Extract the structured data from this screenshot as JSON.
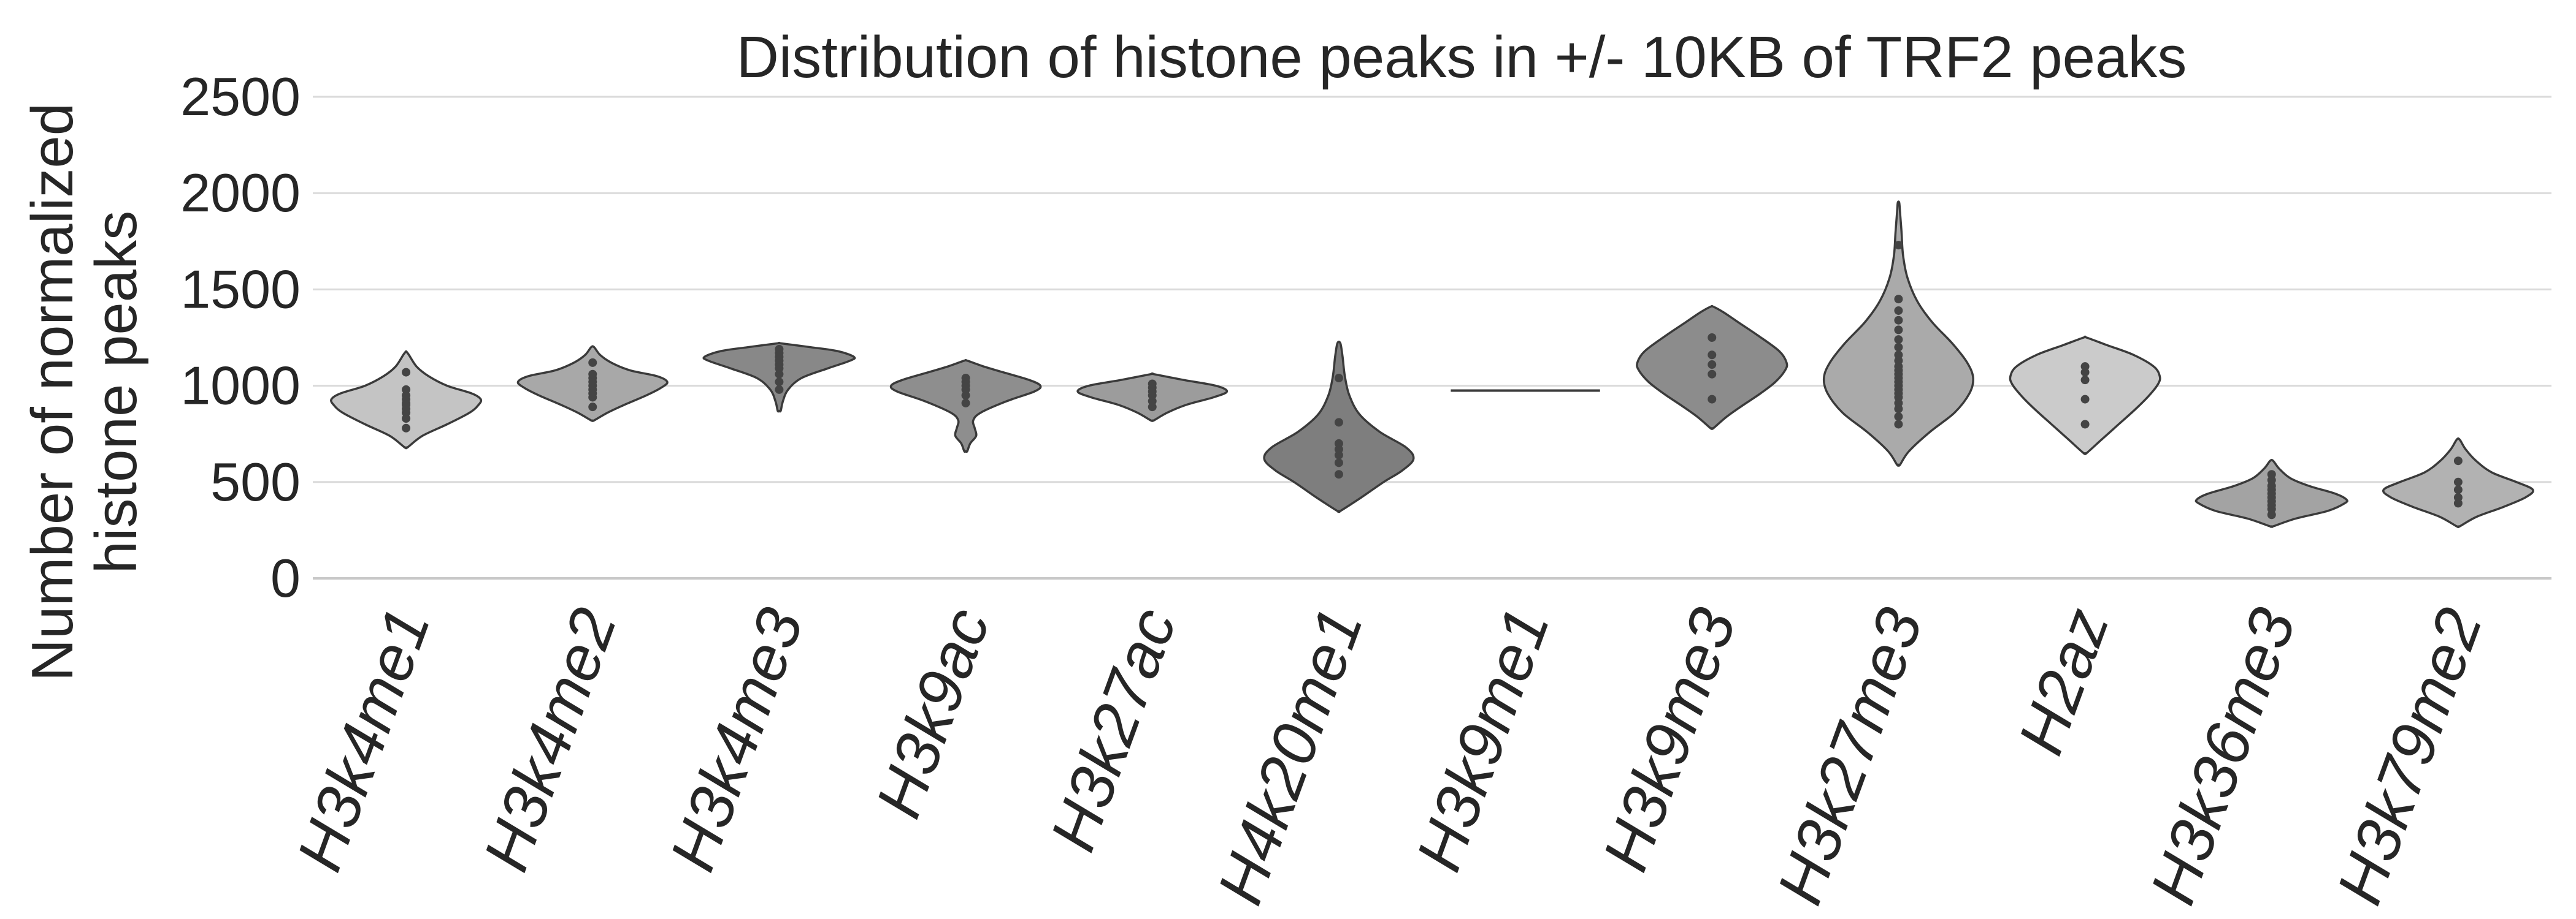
{
  "chart_data": {
    "type": "violin",
    "title": "Distribution of histone peaks in +/- 10KB of TRF2 peaks",
    "ylabel_lines": [
      "Number of normalized",
      "histone peaks"
    ],
    "xlabel": "",
    "ylim": [
      0,
      2500
    ],
    "yticks": [
      0,
      500,
      1000,
      1500,
      2000,
      2500
    ],
    "grid": true,
    "categories": [
      "H3k4me1",
      "H3k4me2",
      "H3k4me3",
      "H3k9ac",
      "H3k27ac",
      "H4k20me1",
      "H3k9me1",
      "H3k9me3",
      "H3k27me3",
      "H2az",
      "H3k36me3",
      "H3k79me2"
    ],
    "fill_colors": [
      "#c4c4c4",
      "#a8a8a8",
      "#888888",
      "#8e8e8e",
      "#9c9c9c",
      "#7e7e7e",
      "#ffffff",
      "#8c8c8c",
      "#aaaaaa",
      "#cbcbcb",
      "#a3a3a3",
      "#b2b2b2"
    ],
    "violins": [
      {
        "name": "H3k4me1",
        "min": 680,
        "max": 1170,
        "profile": [
          [
            680,
            0.02
          ],
          [
            740,
            0.22
          ],
          [
            800,
            0.55
          ],
          [
            860,
            0.85
          ],
          [
            900,
            0.97
          ],
          [
            930,
            1.0
          ],
          [
            960,
            0.88
          ],
          [
            1000,
            0.55
          ],
          [
            1050,
            0.3
          ],
          [
            1100,
            0.14
          ],
          [
            1170,
            0.02
          ]
        ],
        "points": [
          780,
          830,
          860,
          880,
          900,
          910,
          930,
          950,
          980,
          1070
        ]
      },
      {
        "name": "H3k4me2",
        "min": 820,
        "max": 1200,
        "profile": [
          [
            820,
            0.02
          ],
          [
            860,
            0.2
          ],
          [
            900,
            0.42
          ],
          [
            950,
            0.72
          ],
          [
            990,
            0.92
          ],
          [
            1020,
            1.0
          ],
          [
            1050,
            0.86
          ],
          [
            1080,
            0.5
          ],
          [
            1120,
            0.25
          ],
          [
            1160,
            0.1
          ],
          [
            1200,
            0.02
          ]
        ],
        "points": [
          890,
          940,
          960,
          980,
          1000,
          1020,
          1040,
          1060,
          1120
        ]
      },
      {
        "name": "H3k4me3",
        "min": 870,
        "max": 1220,
        "profile": [
          [
            870,
            0.02
          ],
          [
            920,
            0.05
          ],
          [
            980,
            0.12
          ],
          [
            1040,
            0.3
          ],
          [
            1090,
            0.65
          ],
          [
            1130,
            0.95
          ],
          [
            1150,
            1.0
          ],
          [
            1180,
            0.78
          ],
          [
            1200,
            0.42
          ],
          [
            1220,
            0.02
          ]
        ],
        "points": [
          980,
          1020,
          1060,
          1090,
          1110,
          1130,
          1150,
          1170,
          1190
        ]
      },
      {
        "name": "H3k9ac",
        "min": 660,
        "max": 1130,
        "profile": [
          [
            660,
            0.02
          ],
          [
            700,
            0.06
          ],
          [
            740,
            0.14
          ],
          [
            780,
            0.12
          ],
          [
            820,
            0.1
          ],
          [
            860,
            0.2
          ],
          [
            920,
            0.55
          ],
          [
            970,
            0.92
          ],
          [
            1000,
            1.0
          ],
          [
            1030,
            0.85
          ],
          [
            1070,
            0.5
          ],
          [
            1100,
            0.24
          ],
          [
            1130,
            0.02
          ]
        ],
        "points": [
          910,
          950,
          980,
          1000,
          1020,
          1040
        ]
      },
      {
        "name": "H3k27ac",
        "min": 820,
        "max": 1060,
        "profile": [
          [
            820,
            0.02
          ],
          [
            860,
            0.2
          ],
          [
            900,
            0.45
          ],
          [
            940,
            0.82
          ],
          [
            970,
            1.0
          ],
          [
            1000,
            0.85
          ],
          [
            1030,
            0.42
          ],
          [
            1060,
            0.02
          ]
        ],
        "points": [
          890,
          920,
          950,
          970,
          990,
          1010
        ]
      },
      {
        "name": "H4k20me1",
        "min": 350,
        "max": 1220,
        "profile": [
          [
            350,
            0.02
          ],
          [
            420,
            0.3
          ],
          [
            500,
            0.6
          ],
          [
            560,
            0.85
          ],
          [
            620,
            1.0
          ],
          [
            680,
            0.9
          ],
          [
            760,
            0.55
          ],
          [
            850,
            0.28
          ],
          [
            950,
            0.14
          ],
          [
            1050,
            0.08
          ],
          [
            1150,
            0.05
          ],
          [
            1220,
            0.02
          ]
        ],
        "points": [
          540,
          600,
          640,
          670,
          700,
          810,
          1040
        ]
      },
      {
        "name": "H3k9me1",
        "min": 975,
        "max": 975,
        "profile": [],
        "points": [
          975
        ]
      },
      {
        "name": "H3k9me3",
        "min": 780,
        "max": 1410,
        "profile": [
          [
            780,
            0.02
          ],
          [
            840,
            0.2
          ],
          [
            900,
            0.42
          ],
          [
            960,
            0.65
          ],
          [
            1020,
            0.85
          ],
          [
            1080,
            0.98
          ],
          [
            1120,
            1.0
          ],
          [
            1180,
            0.9
          ],
          [
            1260,
            0.62
          ],
          [
            1330,
            0.35
          ],
          [
            1380,
            0.16
          ],
          [
            1410,
            0.02
          ]
        ],
        "points": [
          930,
          1060,
          1110,
          1160,
          1250
        ]
      },
      {
        "name": "H3k27me3",
        "min": 590,
        "max": 1950,
        "profile": [
          [
            590,
            0.02
          ],
          [
            660,
            0.14
          ],
          [
            760,
            0.42
          ],
          [
            860,
            0.75
          ],
          [
            960,
            0.95
          ],
          [
            1040,
            1.0
          ],
          [
            1120,
            0.92
          ],
          [
            1220,
            0.72
          ],
          [
            1330,
            0.45
          ],
          [
            1440,
            0.25
          ],
          [
            1560,
            0.12
          ],
          [
            1680,
            0.06
          ],
          [
            1800,
            0.04
          ],
          [
            1900,
            0.02
          ],
          [
            1950,
            0.01
          ]
        ],
        "points": [
          800,
          840,
          880,
          910,
          940,
          960,
          980,
          1000,
          1020,
          1040,
          1060,
          1080,
          1100,
          1130,
          1160,
          1200,
          1240,
          1290,
          1340,
          1390,
          1450,
          1730
        ]
      },
      {
        "name": "H2az",
        "min": 650,
        "max": 1250,
        "profile": [
          [
            650,
            0.02
          ],
          [
            720,
            0.22
          ],
          [
            800,
            0.45
          ],
          [
            880,
            0.68
          ],
          [
            950,
            0.86
          ],
          [
            1010,
            0.98
          ],
          [
            1050,
            1.0
          ],
          [
            1100,
            0.92
          ],
          [
            1160,
            0.65
          ],
          [
            1210,
            0.3
          ],
          [
            1250,
            0.02
          ]
        ],
        "points": [
          800,
          930,
          1030,
          1070,
          1100
        ]
      },
      {
        "name": "H3k36me3",
        "min": 270,
        "max": 610,
        "profile": [
          [
            270,
            0.02
          ],
          [
            310,
            0.32
          ],
          [
            350,
            0.75
          ],
          [
            390,
            0.98
          ],
          [
            410,
            1.0
          ],
          [
            440,
            0.85
          ],
          [
            480,
            0.5
          ],
          [
            520,
            0.25
          ],
          [
            570,
            0.1
          ],
          [
            610,
            0.02
          ]
        ],
        "points": [
          330,
          360,
          380,
          400,
          420,
          440,
          460,
          480,
          510,
          540
        ]
      },
      {
        "name": "H3k79me2",
        "min": 270,
        "max": 720,
        "profile": [
          [
            270,
            0.02
          ],
          [
            320,
            0.25
          ],
          [
            370,
            0.6
          ],
          [
            420,
            0.9
          ],
          [
            460,
            1.0
          ],
          [
            500,
            0.78
          ],
          [
            550,
            0.45
          ],
          [
            610,
            0.24
          ],
          [
            670,
            0.1
          ],
          [
            720,
            0.02
          ]
        ],
        "points": [
          390,
          420,
          460,
          500,
          610
        ]
      }
    ]
  }
}
